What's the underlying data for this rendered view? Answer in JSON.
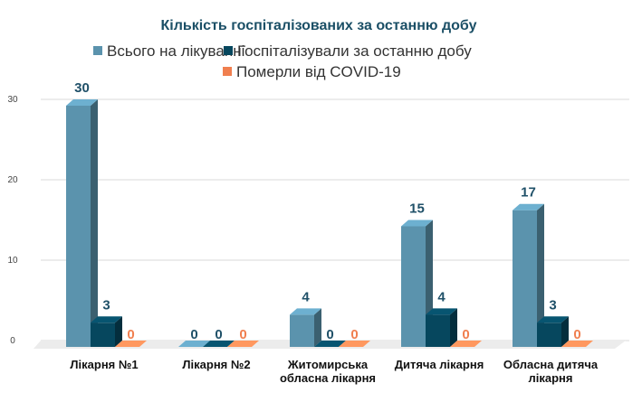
{
  "chart_data": {
    "type": "bar",
    "title": "Кількість госпіталізованих за останню добу",
    "categories": [
      "Лікарня №1",
      "Лікарня №2",
      "Житомирська обласна лікарня",
      "Дитяча лікарня",
      "Обласна дитяча лікарня"
    ],
    "series": [
      {
        "name": "Всього на лікуванні",
        "values": [
          30,
          0,
          4,
          15,
          17
        ],
        "color": "#5b93ad",
        "label_color": "#1f5068"
      },
      {
        "name": "Госпіталізували за останню добу",
        "values": [
          3,
          0,
          0,
          4,
          3
        ],
        "color": "#06475e",
        "label_color": "#1f5068"
      },
      {
        "name": "Померли від COVID-19",
        "values": [
          0,
          0,
          0,
          0,
          0
        ],
        "color": "#f07f4f",
        "label_color": "#f07f4f"
      }
    ],
    "yticks": [
      0,
      10,
      20,
      30
    ],
    "ylim": [
      0,
      30
    ],
    "grid": true,
    "legend": "top",
    "style": "3d-column"
  }
}
